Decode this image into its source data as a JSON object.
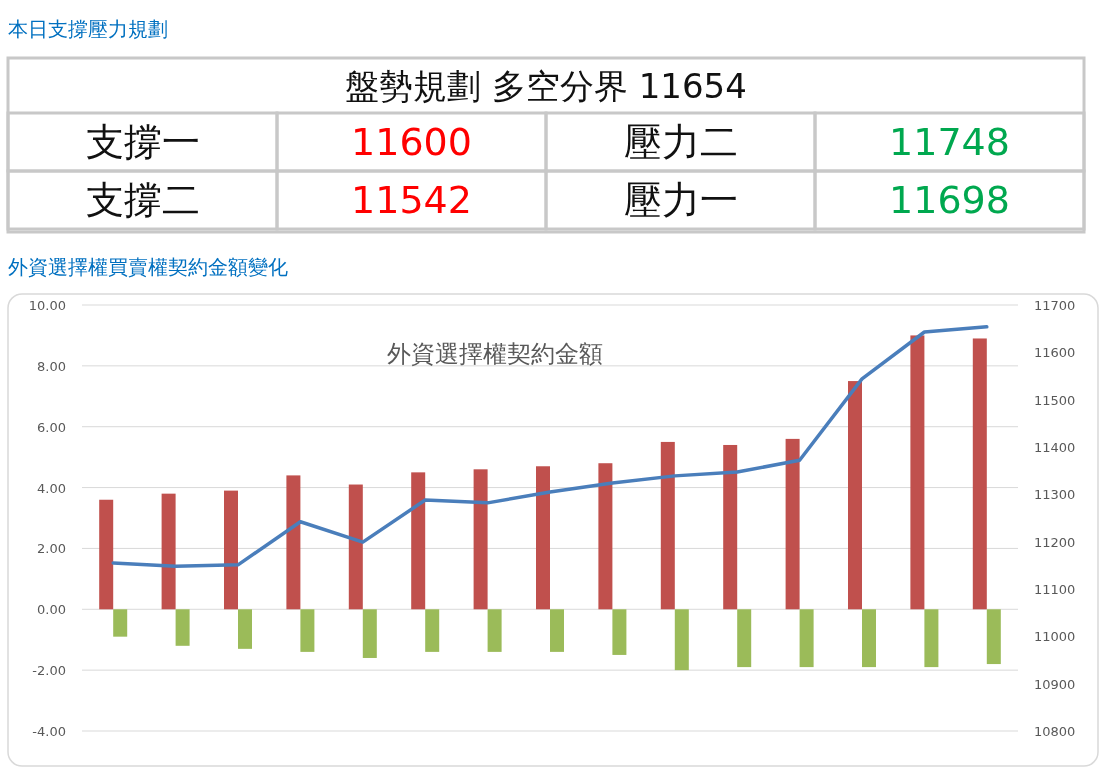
{
  "chart_data": [
    {
      "type": "other",
      "title": "本日支撐壓力規劃",
      "annotations": [
        "盤勢規劃 多空分界 11654",
        "支撐一",
        "11600",
        "壓力二",
        "11748",
        "支撐二",
        "11542",
        "壓力一",
        "11698"
      ]
    },
    {
      "type": "bar",
      "title": "外資選擇權買賣權契約金額變化",
      "subtitle": "外資選擇權契約金額",
      "categories": [
        null,
        null,
        null,
        null,
        null,
        null,
        null,
        null,
        null,
        null,
        null,
        null,
        null,
        null,
        null
      ],
      "series": [
        {
          "type": "bar",
          "color": "#c0504d",
          "values": [
            3.6,
            3.8,
            3.9,
            4.4,
            4.1,
            4.5,
            4.6,
            4.7,
            4.8,
            5.5,
            5.4,
            5.6,
            7.5,
            9.0,
            8.9
          ]
        },
        {
          "type": "bar",
          "color": "#9bbb59",
          "values": [
            -0.9,
            -1.2,
            -1.3,
            -1.4,
            -1.6,
            -1.4,
            -1.4,
            -1.4,
            -1.5,
            -2.0,
            -1.9,
            -1.9,
            -1.9,
            -1.9,
            -1.8
          ]
        },
        {
          "type": "line",
          "axis": "y2",
          "color": "#4a7ebb",
          "values": [
            11155,
            11148,
            11151,
            11242,
            11199,
            11288,
            11282,
            11305,
            11324,
            11339,
            11347,
            11372,
            11544,
            11643,
            11654
          ]
        }
      ],
      "ylim": [
        -4,
        10
      ],
      "yticks": [
        {
          "value": -4,
          "label": "-4.00"
        },
        {
          "value": -2,
          "label": "-2.00"
        },
        {
          "value": 0,
          "label": "0.00"
        },
        {
          "value": 2,
          "label": "2.00"
        },
        {
          "value": 4,
          "label": "4.00"
        },
        {
          "value": 6,
          "label": "6.00"
        },
        {
          "value": 8,
          "label": "8.00"
        },
        {
          "value": 10,
          "label": "10.00"
        }
      ],
      "y2lim": [
        10800,
        11700
      ],
      "y2ticks": [
        10800,
        10900,
        11000,
        11100,
        11200,
        11300,
        11400,
        11500,
        11600,
        11700
      ],
      "grid": "y"
    }
  ]
}
